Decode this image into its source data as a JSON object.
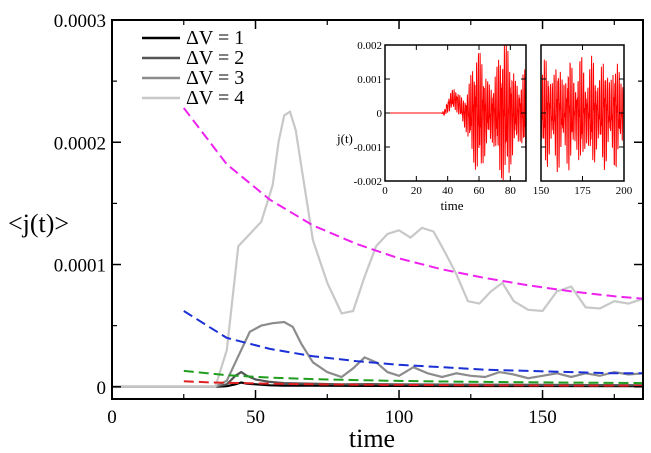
{
  "chart_data": {
    "type": "line",
    "xlabel": "time",
    "ylabel": "<j(t)>",
    "xlim": [
      0,
      185
    ],
    "ylim": [
      -1e-05,
      0.0003
    ],
    "x_ticks": [
      0,
      50,
      100,
      150
    ],
    "y_ticks": [
      0,
      0.0001,
      0.0002,
      0.0003
    ],
    "x_tick_labels": [
      "0",
      "50",
      "100",
      "150"
    ],
    "y_tick_labels": [
      "0",
      "0.0001",
      "0.0002",
      "0.0003"
    ],
    "legend_position": "top-left",
    "series": [
      {
        "name": "ΔV = 1",
        "color": "#000000",
        "x": [
          0,
          36,
          40,
          43,
          45,
          47,
          50,
          55,
          60,
          70,
          80,
          90,
          100,
          120,
          150,
          185
        ],
        "y": [
          0,
          0,
          5e-07,
          2e-06,
          3.5e-06,
          2.5e-06,
          2e-06,
          1.2e-06,
          1e-06,
          9e-07,
          8e-07,
          7e-07,
          7e-07,
          6e-07,
          6e-07,
          5e-07
        ]
      },
      {
        "name": "ΔV = 2",
        "color": "#555555",
        "x": [
          0,
          36,
          40,
          43,
          45,
          47,
          50,
          55,
          60,
          70,
          80,
          90,
          100,
          120,
          150,
          185
        ],
        "y": [
          0,
          0,
          2e-06,
          9e-06,
          1.2e-05,
          9e-06,
          6e-06,
          4e-06,
          3e-06,
          2.5e-06,
          2e-06,
          2.2e-06,
          2e-06,
          1.8e-06,
          1.5e-06,
          1.3e-06
        ]
      },
      {
        "name": "ΔV = 3",
        "color": "#8c8c8c",
        "x": [
          0,
          36,
          40,
          44,
          48,
          52,
          56,
          60,
          63,
          66,
          70,
          75,
          80,
          84,
          88,
          92,
          96,
          100,
          105,
          110,
          115,
          120,
          125,
          130,
          135,
          140,
          145,
          150,
          155,
          160,
          165,
          170,
          175,
          180,
          185
        ],
        "y": [
          0,
          0,
          5e-06,
          2.5e-05,
          4.5e-05,
          5e-05,
          5.2e-05,
          5.3e-05,
          4.9e-05,
          3.5e-05,
          2e-05,
          1.2e-05,
          8e-06,
          1.5e-05,
          2.4e-05,
          2e-05,
          1.2e-05,
          9e-06,
          1.6e-05,
          1.1e-05,
          8e-06,
          1.1e-05,
          9e-06,
          8e-06,
          1.2e-05,
          1e-05,
          7e-06,
          9e-06,
          1.1e-05,
          8e-06,
          1.1e-05,
          9e-06,
          1.2e-05,
          1e-05,
          1.1e-05
        ]
      },
      {
        "name": "ΔV = 4",
        "color": "#c8c8c8",
        "x": [
          0,
          36,
          40,
          44,
          48,
          52,
          56,
          58,
          60,
          62,
          64,
          66,
          70,
          75,
          80,
          84,
          88,
          92,
          96,
          100,
          104,
          108,
          112,
          116,
          120,
          124,
          128,
          132,
          136,
          140,
          145,
          150,
          155,
          160,
          165,
          170,
          175,
          180,
          185
        ],
        "y": [
          0,
          0,
          3e-05,
          0.000115,
          0.000125,
          0.000135,
          0.000165,
          0.0002,
          0.000222,
          0.000225,
          0.00021,
          0.00018,
          0.00012,
          8.5e-05,
          6e-05,
          6.2e-05,
          9e-05,
          0.000115,
          0.000125,
          0.000128,
          0.000122,
          0.00013,
          0.000127,
          0.00011,
          9.2e-05,
          7e-05,
          6.8e-05,
          7.8e-05,
          8.5e-05,
          7e-05,
          6.3e-05,
          6.2e-05,
          7.8e-05,
          8.2e-05,
          6.5e-05,
          6.4e-05,
          7e-05,
          6.8e-05,
          7.2e-05
        ]
      },
      {
        "color": "#ee22ee",
        "dashed": true,
        "x": [
          25,
          40,
          55,
          70,
          85,
          100,
          115,
          130,
          145,
          160,
          175,
          185
        ],
        "y": [
          0.000228,
          0.000182,
          0.000153,
          0.000132,
          0.000117,
          0.000105,
          9.6e-05,
          8.9e-05,
          8.3e-05,
          7.8e-05,
          7.4e-05,
          7.2e-05
        ]
      },
      {
        "color": "#1a2fd6",
        "dashed": true,
        "x": [
          25,
          40,
          55,
          70,
          85,
          100,
          115,
          130,
          145,
          160,
          175,
          185
        ],
        "y": [
          6.2e-05,
          4e-05,
          3.1e-05,
          2.5e-05,
          2.1e-05,
          1.8e-05,
          1.6e-05,
          1.4e-05,
          1.3e-05,
          1.2e-05,
          1.1e-05,
          1.1e-05
        ]
      },
      {
        "color": "#1f9e1f",
        "dashed": true,
        "x": [
          25,
          40,
          55,
          70,
          85,
          100,
          115,
          130,
          145,
          160,
          175,
          185
        ],
        "y": [
          1.3e-05,
          9.5e-06,
          7.5e-06,
          6.3e-06,
          5.5e-06,
          4.8e-06,
          4.3e-06,
          4e-06,
          3.7e-06,
          3.4e-06,
          3.2e-06,
          3e-06
        ]
      },
      {
        "color": "#e02020",
        "dashed": true,
        "x": [
          25,
          35,
          45,
          55,
          70,
          85,
          100,
          130,
          160,
          185
        ],
        "y": [
          4.5e-06,
          3.5e-06,
          3e-06,
          2.5e-06,
          2e-06,
          1.7e-06,
          1.5e-06,
          1.2e-06,
          1e-06,
          9e-07
        ]
      }
    ],
    "insets": [
      {
        "xlim": [
          0,
          90
        ],
        "ylim": [
          -0.002,
          0.002
        ],
        "x_ticks": [
          0,
          20,
          40,
          60,
          80
        ],
        "x_tick_labels": [
          "0",
          "20",
          "40",
          "60",
          "80"
        ],
        "y_ticks": [
          -0.002,
          -0.001,
          0,
          0.001,
          0.002
        ],
        "y_tick_labels": [
          "-0.002",
          "-0.001",
          "0",
          "0.001",
          "0.002"
        ],
        "xlabel": "time",
        "ylabel": "j(t)",
        "color": "#ff0000"
      },
      {
        "xlim": [
          150,
          200
        ],
        "ylim": [
          -0.002,
          0.002
        ],
        "x_ticks": [
          150,
          175,
          200
        ],
        "x_tick_labels": [
          "150",
          "175",
          "200"
        ],
        "y_ticks": [
          -0.002,
          -0.001,
          0,
          0.001,
          0.002
        ],
        "color": "#ff0000"
      }
    ]
  }
}
